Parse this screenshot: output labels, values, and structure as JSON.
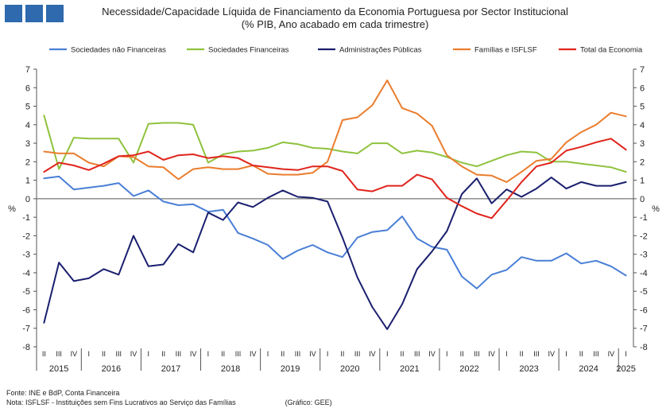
{
  "header": {
    "title_line1": "Necessidade/Capacidade  Líquida de Financiamento  da Economia Portuguesa por Sector Institucional",
    "title_line2": "(% PIB, Ano acabado em cada trimestre)"
  },
  "footer": {
    "source": "Fonte: INE e  BdP, Conta Financeira",
    "note": "Nota: ISFLSF - Instituições  sem Fins Lucrativos  ao Serviço das Famílias",
    "credit": "(Gráfico: GEE)"
  },
  "colors": {
    "logo": "#2e6aad"
  },
  "chart_data": {
    "type": "line",
    "title": "Necessidade/Capacidade  Líquida de Financiamento  da Economia Portuguesa por Sector Institucional",
    "subtitle": "(% PIB, Ano acabado em cada trimestre)",
    "ylabel_left": "%",
    "ylabel_right": "%",
    "ylim": [
      -8,
      7
    ],
    "yticks": [
      -8,
      -7,
      -6,
      -5,
      -4,
      -3,
      -2,
      -1,
      0,
      1,
      2,
      3,
      4,
      5,
      6,
      7
    ],
    "grid": false,
    "legend_position": "top",
    "x_quarter_labels": [
      "II",
      "III",
      "IV",
      "I",
      "II",
      "III",
      "IV",
      "I",
      "II",
      "III",
      "IV",
      "I",
      "II",
      "III",
      "IV",
      "I",
      "II",
      "III",
      "IV",
      "I",
      "II",
      "III",
      "IV",
      "I",
      "II",
      "III",
      "IV",
      "I",
      "II",
      "III",
      "IV",
      "I",
      "II",
      "III",
      "IV",
      "I",
      "II",
      "III",
      "IV",
      "I"
    ],
    "x_year_labels": [
      {
        "label": "2015",
        "start": 0,
        "end": 2
      },
      {
        "label": "2016",
        "start": 3,
        "end": 6
      },
      {
        "label": "2017",
        "start": 7,
        "end": 10
      },
      {
        "label": "2018",
        "start": 11,
        "end": 14
      },
      {
        "label": "2019",
        "start": 15,
        "end": 18
      },
      {
        "label": "2020",
        "start": 19,
        "end": 22
      },
      {
        "label": "2021",
        "start": 23,
        "end": 26
      },
      {
        "label": "2022",
        "start": 27,
        "end": 30
      },
      {
        "label": "2023",
        "start": 31,
        "end": 34
      },
      {
        "label": "2024",
        "start": 35,
        "end": 38
      },
      {
        "label": "2025",
        "start": 39,
        "end": 39
      }
    ],
    "series": [
      {
        "name": "Sociedades não Financeiras",
        "color": "#4a7fd6",
        "values": [
          1.1,
          1.2,
          0.5,
          0.6,
          0.7,
          0.85,
          0.15,
          0.45,
          -0.15,
          -0.35,
          -0.3,
          -0.7,
          -0.6,
          -1.85,
          -2.15,
          -2.5,
          -3.25,
          -2.8,
          -2.5,
          -2.9,
          -3.15,
          -2.1,
          -1.8,
          -1.7,
          -0.95,
          -2.15,
          -2.6,
          -2.75,
          -4.2,
          -4.85,
          -4.1,
          -3.85,
          -3.15,
          -3.35,
          -3.35,
          -2.95,
          -3.5,
          -3.35,
          -3.65,
          -4.15
        ]
      },
      {
        "name": "Sociedades Financeiras",
        "color": "#8fc23e",
        "values": [
          4.5,
          1.6,
          3.3,
          3.25,
          3.25,
          3.25,
          1.95,
          4.05,
          4.1,
          4.1,
          4.0,
          1.95,
          2.4,
          2.55,
          2.6,
          2.75,
          3.05,
          2.95,
          2.75,
          2.7,
          2.55,
          2.45,
          3.0,
          3.0,
          2.45,
          2.6,
          2.5,
          2.25,
          1.95,
          1.75,
          2.05,
          2.35,
          2.55,
          2.5,
          2.0,
          2.0,
          1.9,
          1.8,
          1.7,
          1.45
        ]
      },
      {
        "name": "Administrações Públicas",
        "color": "#1a1f6e",
        "values": [
          -6.7,
          -3.45,
          -4.45,
          -4.3,
          -3.8,
          -4.1,
          -2.0,
          -3.65,
          -3.55,
          -2.45,
          -2.9,
          -0.75,
          -1.15,
          -0.2,
          -0.45,
          0.05,
          0.45,
          0.1,
          0.05,
          -0.15,
          -2.1,
          -4.25,
          -5.85,
          -7.05,
          -5.7,
          -3.8,
          -2.85,
          -1.75,
          0.25,
          1.1,
          -0.25,
          0.5,
          0.1,
          0.55,
          1.15,
          0.55,
          0.9,
          0.7,
          0.7,
          0.9
        ]
      },
      {
        "name": "Famílias e ISFLSF",
        "color": "#ea7d2e",
        "values": [
          2.55,
          2.45,
          2.45,
          1.95,
          1.75,
          2.3,
          2.25,
          1.75,
          1.7,
          1.05,
          1.6,
          1.7,
          1.6,
          1.6,
          1.8,
          1.35,
          1.3,
          1.3,
          1.4,
          2.0,
          4.25,
          4.4,
          5.05,
          6.4,
          4.9,
          4.6,
          3.95,
          2.35,
          1.75,
          1.3,
          1.25,
          0.9,
          1.45,
          2.05,
          2.15,
          3.05,
          3.6,
          4.0,
          4.65,
          4.45
        ]
      },
      {
        "name": "Total da Economia",
        "color": "#e0241c",
        "values": [
          1.45,
          1.95,
          1.8,
          1.55,
          1.9,
          2.3,
          2.35,
          2.55,
          2.1,
          2.35,
          2.4,
          2.2,
          2.3,
          2.2,
          1.8,
          1.7,
          1.6,
          1.55,
          1.75,
          1.75,
          1.5,
          0.5,
          0.4,
          0.7,
          0.7,
          1.3,
          1.05,
          0.05,
          -0.4,
          -0.8,
          -1.05,
          -0.1,
          0.9,
          1.75,
          1.95,
          2.6,
          2.8,
          3.05,
          3.25,
          2.65
        ]
      }
    ]
  }
}
